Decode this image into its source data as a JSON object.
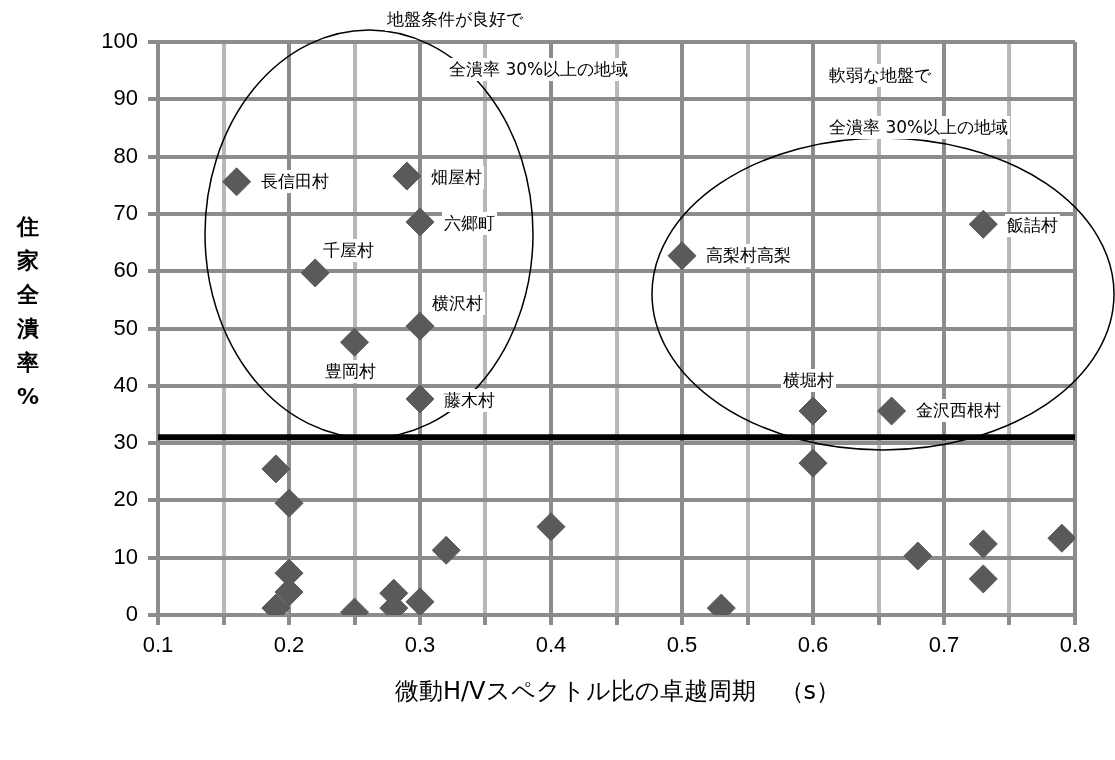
{
  "chart_data": {
    "type": "scatter",
    "xlabel": "微動H/Vスペクトル比の卓越周期　（s）",
    "ylabel": "住家全潰率%",
    "x": [
      0.16,
      0.29,
      0.3,
      0.22,
      0.3,
      0.25,
      0.3,
      0.5,
      0.73,
      0.6,
      0.66,
      0.19,
      0.2,
      0.2,
      0.2,
      0.19,
      0.25,
      0.28,
      0.28,
      0.3,
      0.32,
      0.4,
      0.53,
      0.6,
      0.68,
      0.73,
      0.73,
      0.79
    ],
    "series": [
      {
        "color": "#5a5a5a",
        "values": [
          75.6,
          76.6,
          68.6,
          59.7,
          50.4,
          47.6,
          37.7,
          62.7,
          68.2,
          35.6,
          35.6,
          25.5,
          19.5,
          7.3,
          4.0,
          1.2,
          0.5,
          3.8,
          1.2,
          2.3,
          11.3,
          15.4,
          1.2,
          26.5,
          10.3,
          12.4,
          6.3,
          13.4
        ]
      }
    ],
    "xlim": [
      0.1,
      0.8
    ],
    "xticks": [
      0.1,
      {
        "value": 0.15,
        "label": null
      },
      0.2,
      {
        "value": 0.25,
        "label": null
      },
      0.3,
      {
        "value": 0.35,
        "label": null
      },
      0.4,
      {
        "value": 0.45,
        "label": null
      },
      0.5,
      {
        "value": 0.55,
        "label": null
      },
      0.6,
      {
        "value": 0.65,
        "label": null
      },
      0.7,
      {
        "value": 0.75,
        "label": null
      },
      0.8
    ],
    "ylim": [
      0,
      100
    ],
    "yticks": [
      0,
      10,
      20,
      30,
      40,
      50,
      60,
      70,
      80,
      90,
      100
    ],
    "grid": true,
    "legend": false,
    "marker": "diamond",
    "ref_lines": [
      {
        "axis": "y",
        "value": 31,
        "color": "#000000"
      }
    ],
    "annotations": [
      "地盤条件が良好で",
      "全潰率 30%以上の地域",
      "軟弱な地盤で",
      "全潰率 30%以上の地域",
      {
        "text": "長信田村",
        "x": 0.16,
        "y": 75.6
      },
      {
        "text": "畑屋村",
        "x": 0.29,
        "y": 76.6
      },
      {
        "text": "六郷町",
        "x": 0.3,
        "y": 68.6
      },
      {
        "text": "千屋村",
        "x": 0.22,
        "y": 59.7
      },
      {
        "text": "横沢村",
        "x": 0.3,
        "y": 50.4
      },
      {
        "text": "豊岡村",
        "x": 0.25,
        "y": 47.6
      },
      {
        "text": "藤木村",
        "x": 0.3,
        "y": 37.7
      },
      {
        "text": "高梨村高梨",
        "x": 0.5,
        "y": 62.7
      },
      {
        "text": "飯詰村",
        "x": 0.73,
        "y": 68.2
      },
      {
        "text": "横堀村",
        "x": 0.6,
        "y": 35.6
      },
      {
        "text": "金沢西根村",
        "x": 0.66,
        "y": 35.6
      }
    ]
  }
}
